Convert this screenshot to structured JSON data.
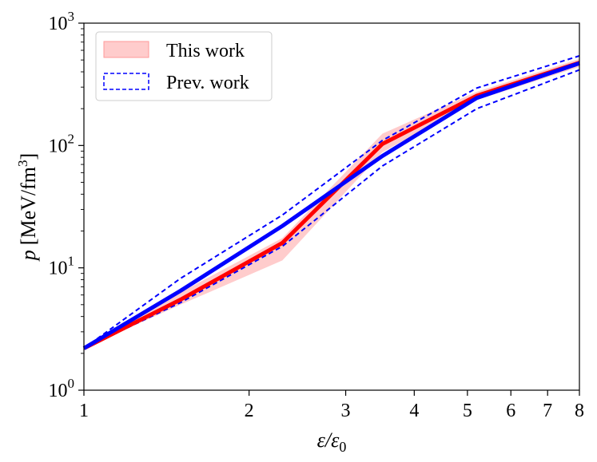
{
  "chart_data": {
    "type": "line",
    "xscale": "log",
    "yscale": "log",
    "xlim": [
      1,
      8
    ],
    "ylim": [
      1,
      1000
    ],
    "xlabel": {
      "main": "ε/ε",
      "sub": "0"
    },
    "ylabel": {
      "var": "p",
      "unit_main": "[MeV/fm",
      "unit_sup": "3",
      "unit_end": "]"
    },
    "x_ticks": [
      {
        "value": 1,
        "label": "1"
      },
      {
        "value": 2,
        "label": "2"
      },
      {
        "value": 3,
        "label": "3"
      },
      {
        "value": 4,
        "label": "4"
      },
      {
        "value": 5,
        "label": "5"
      },
      {
        "value": 6,
        "label": "6"
      },
      {
        "value": 7,
        "label": "7"
      },
      {
        "value": 8,
        "label": "8"
      }
    ],
    "y_ticks": [
      {
        "value": 1,
        "base": "10",
        "exp": "0"
      },
      {
        "value": 10,
        "base": "10",
        "exp": "1"
      },
      {
        "value": 100,
        "base": "10",
        "exp": "2"
      },
      {
        "value": 1000,
        "base": "10",
        "exp": "3"
      }
    ],
    "grid": false,
    "legend": {
      "placement": "top-left",
      "entries": [
        {
          "label": "This work",
          "style": "band",
          "color": "#f7a3a3"
        },
        {
          "label": "Prev. work",
          "style": "dashed",
          "color": "#0000ff"
        }
      ]
    },
    "band": {
      "name": "This work",
      "color": "#ff9999",
      "x": [
        1,
        1.5,
        2.3,
        3.5,
        5.2,
        8
      ],
      "lower": [
        2.2,
        5.0,
        11.5,
        88,
        235,
        440
      ],
      "upper": [
        2.2,
        6.3,
        17.5,
        125,
        275,
        510
      ]
    },
    "series": [
      {
        "name": "This work",
        "color": "#ff0000",
        "style": "solid",
        "x": [
          1,
          1.5,
          2.3,
          3.5,
          5.2,
          8
        ],
        "y": [
          2.2,
          5.5,
          16,
          103,
          255,
          475
        ]
      },
      {
        "name": "Prev. work",
        "color": "#0000ff",
        "style": "solid",
        "x": [
          1,
          1.5,
          2.3,
          3.5,
          5.2,
          8
        ],
        "y": [
          2.2,
          6.5,
          22,
          82,
          245,
          470
        ]
      },
      {
        "name": "Prev. work upper",
        "color": "#0000ff",
        "style": "dashed",
        "x": [
          1,
          1.5,
          2.3,
          3.5,
          5.2,
          8
        ],
        "y": [
          2.2,
          8.2,
          27,
          110,
          295,
          540
        ]
      },
      {
        "name": "Prev. work lower",
        "color": "#0000ff",
        "style": "dashed",
        "x": [
          1,
          1.5,
          2.3,
          3.5,
          5.2,
          8
        ],
        "y": [
          2.2,
          5.2,
          15,
          68,
          200,
          415
        ]
      }
    ]
  }
}
